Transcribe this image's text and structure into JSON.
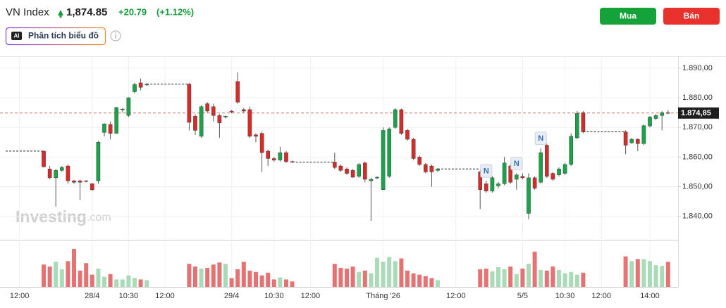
{
  "header": {
    "title": "VN Index",
    "price": "1,874.85",
    "change": "+20.79",
    "change_pct": "(+1.12%)",
    "ai_badge": "AI",
    "ai_button": "Phân tích biểu đồ",
    "buy": "Mua",
    "sell": "Bán"
  },
  "chart_data": {
    "type": "candlestick",
    "watermark": "Investing",
    "watermark_suffix": ".com",
    "news": [
      "N",
      "N",
      "N"
    ],
    "categories": [
      null,
      null,
      "12:00",
      null,
      null,
      null,
      null,
      null,
      null,
      null,
      null,
      null,
      null,
      null,
      "28/4",
      null,
      null,
      null,
      null,
      null,
      "10:30",
      null,
      null,
      null,
      null,
      null,
      "12:00",
      null,
      null,
      null,
      null,
      null,
      null,
      null,
      null,
      null,
      null,
      "29/4",
      null,
      null,
      null,
      null,
      null,
      null,
      "10:30",
      null,
      null,
      null,
      null,
      null,
      "12:00",
      null,
      null,
      null,
      null,
      null,
      null,
      null,
      null,
      null,
      null,
      null,
      "Tháng '26",
      null,
      null,
      null,
      null,
      null,
      null,
      null,
      null,
      null,
      null,
      null,
      "12:00",
      null,
      null,
      null,
      null,
      null,
      null,
      null,
      null,
      null,
      null,
      "5/5",
      null,
      null,
      null,
      null,
      null,
      null,
      "10:30",
      null,
      null,
      null,
      null,
      null,
      "12:00",
      null,
      null,
      null,
      null,
      null,
      null,
      null,
      "14:00",
      null,
      null,
      null
    ],
    "open": [
      null,
      null,
      null,
      null,
      null,
      null,
      1862,
      1856,
      1853,
      1855.5,
      1857,
      1852,
      1852,
      1852,
      1851,
      1852,
      1868.3,
      1871,
      1868,
      1876,
      1874,
      1882,
      1885,
      1884.3,
      null,
      null,
      null,
      null,
      null,
      null,
      1884.6,
      1873.8,
      1867,
      1878,
      1877,
      1874,
      1873.5,
      1875.5,
      1885.5,
      1876,
      1876,
      1867.5,
      1868,
      1862,
      1859.5,
      1859,
      1861.5,
      1858.5,
      null,
      null,
      null,
      null,
      null,
      null,
      1858.3,
      1857,
      1856,
      1855.5,
      1853.5,
      1858,
      1852,
      1853,
      1849,
      1853.5,
      1870,
      1876,
      1869,
      1866,
      1860,
      1857.5,
      1857,
      1855.5,
      null,
      null,
      null,
      null,
      null,
      null,
      1855,
      1851,
      1848.5,
      1850.3,
      1851,
      1857,
      1852.5,
      1853.5,
      1841,
      1853,
      1851.5,
      1864,
      1854.5,
      1854,
      1854.5,
      1857.5,
      1866.5,
      1875,
      null,
      null,
      null,
      null,
      null,
      null,
      1868.5,
      1864.8,
      1866,
      1864.5,
      1870.5,
      1873,
      1874,
      1875
    ],
    "high": [
      null,
      null,
      null,
      null,
      null,
      null,
      1862.2,
      1857,
      1856,
      1857,
      1857.5,
      1852.3,
      1852.4,
      1852.2,
      1851.3,
      1865.5,
      1871.4,
      1872,
      1877,
      1876.5,
      1880.2,
      1885,
      1886.5,
      1885,
      null,
      null,
      null,
      null,
      null,
      null,
      1885,
      1874.5,
      1877.5,
      1878.5,
      1878,
      1874.5,
      1874,
      1875.8,
      1888.5,
      1876.5,
      1877,
      1868,
      1868.5,
      1862.5,
      1860,
      1863.5,
      1862,
      1858.8,
      null,
      null,
      null,
      null,
      null,
      null,
      1861.5,
      1857.5,
      1856.5,
      1856,
      1858,
      1858.5,
      1853,
      1853.5,
      1870,
      1870,
      1876.5,
      1876.3,
      1869.5,
      1866.5,
      1860.5,
      1858,
      1857.5,
      1856.3,
      null,
      null,
      null,
      null,
      null,
      null,
      1855.5,
      1852,
      1853.5,
      1851.5,
      1860,
      1857.5,
      1854.5,
      1854.5,
      1854.5,
      1853.5,
      1863,
      1864.5,
      1855,
      1856.5,
      1858,
      1868,
      1875.6,
      1875.5,
      null,
      null,
      null,
      null,
      null,
      null,
      1869,
      1866.5,
      1866.3,
      1871,
      1873.8,
      1874.5,
      1875.5,
      1875.8
    ],
    "low": [
      null,
      null,
      null,
      null,
      null,
      null,
      1856.5,
      1852.5,
      1843.3,
      1855,
      1851,
      1851,
      1845.5,
      1851.5,
      1848.5,
      1851,
      1867,
      1866,
      1868,
      1875,
      1873.5,
      1881.5,
      1882.5,
      1884,
      null,
      null,
      null,
      null,
      null,
      null,
      1869,
      1867.5,
      1866.5,
      1875,
      1872,
      1866.5,
      1873,
      1874.8,
      1878,
      1875,
      1866.5,
      1865,
      1855,
      1857,
      1858.5,
      1858.5,
      1858,
      1858,
      null,
      null,
      null,
      null,
      null,
      null,
      1856,
      1855,
      1854,
      1853,
      1853,
      1851.5,
      1838.5,
      1852.5,
      1849,
      1853,
      1869.5,
      1867.5,
      1865.5,
      1859,
      1857,
      1854.5,
      1850,
      1855,
      null,
      null,
      null,
      null,
      null,
      null,
      1842.5,
      1848,
      1848,
      1849.5,
      1850.5,
      1851,
      1849,
      1852.5,
      1839,
      1849,
      1851,
      1853,
      1852,
      1853.5,
      1854,
      1857,
      1866,
      1868,
      null,
      null,
      null,
      null,
      null,
      null,
      1861,
      1864.5,
      1862,
      1864,
      1870,
      1872.5,
      1869,
      1874.5
    ],
    "close": [
      null,
      null,
      null,
      null,
      null,
      null,
      1856.7,
      1853,
      1855.5,
      1856.5,
      1852,
      1851.5,
      1851.5,
      1851.8,
      1849,
      1865,
      1871.2,
      1868,
      1876.7,
      1876.2,
      1880,
      1884.5,
      1883.5,
      1884.6,
      null,
      null,
      null,
      null,
      null,
      null,
      1871.7,
      1869,
      1877,
      1875.5,
      1874,
      1871.5,
      1873.8,
      1875.2,
      1878.5,
      1875.5,
      1867,
      1867,
      1861.5,
      1859.5,
      1859,
      1861.5,
      1858.5,
      1858.3,
      null,
      null,
      null,
      null,
      null,
      null,
      1856.5,
      1855.5,
      1854.5,
      1853.2,
      1857.5,
      1852.5,
      1852.5,
      1853.2,
      1869,
      1869.5,
      1876,
      1868,
      1866,
      1859.5,
      1857.5,
      1855,
      1855,
      1856,
      null,
      null,
      null,
      null,
      null,
      null,
      1849,
      1848.5,
      1853,
      1851,
      1858,
      1851.5,
      1854,
      1853,
      1853,
      1849.5,
      1861.5,
      1853.5,
      1852.5,
      1856,
      1857.5,
      1867,
      1874.7,
      1868.5,
      null,
      null,
      null,
      null,
      null,
      null,
      1864,
      1866,
      1864.5,
      1870.6,
      1873.5,
      1874,
      1875,
      1874.85
    ],
    "volume": [
      null,
      null,
      null,
      null,
      null,
      null,
      33,
      30,
      37,
      26,
      38,
      56,
      24,
      35,
      18,
      27,
      15,
      19,
      11,
      11,
      17,
      13,
      11,
      10,
      null,
      null,
      null,
      null,
      null,
      null,
      34,
      30,
      27,
      28,
      33,
      36,
      34,
      13,
      26,
      37,
      24,
      22,
      17,
      21,
      11,
      14,
      11,
      8,
      null,
      null,
      null,
      null,
      null,
      null,
      34,
      28,
      27,
      30,
      22,
      24,
      20,
      43,
      37,
      44,
      38,
      42,
      24,
      20,
      18,
      16,
      13,
      10,
      null,
      null,
      null,
      null,
      null,
      null,
      26,
      27,
      23,
      29,
      26,
      30,
      19,
      27,
      34,
      52,
      25,
      24,
      30,
      25,
      20,
      22,
      18,
      21,
      null,
      null,
      null,
      null,
      null,
      null,
      45,
      38,
      41,
      41,
      38,
      32,
      31,
      37
    ],
    "ylim": [
      1832.1,
      1894.0
    ],
    "yticks": [
      {
        "value": 1840,
        "label": "1.840,00"
      },
      {
        "value": 1850,
        "label": "1.850,00"
      },
      {
        "value": 1860,
        "label": "1.860,00"
      },
      {
        "value": 1870,
        "label": "1.870,00"
      },
      {
        "value": 1880,
        "label": "1.880,00"
      },
      {
        "value": 1890,
        "label": "1.890,00"
      }
    ],
    "price_line": {
      "value": 1874.85,
      "label": "1.874,85"
    },
    "grid": true,
    "up_color": "#1aa34a",
    "down_color": "#d52b2b",
    "up_volume_color": "#a9dbb8",
    "down_volume_color": "#e57373"
  }
}
